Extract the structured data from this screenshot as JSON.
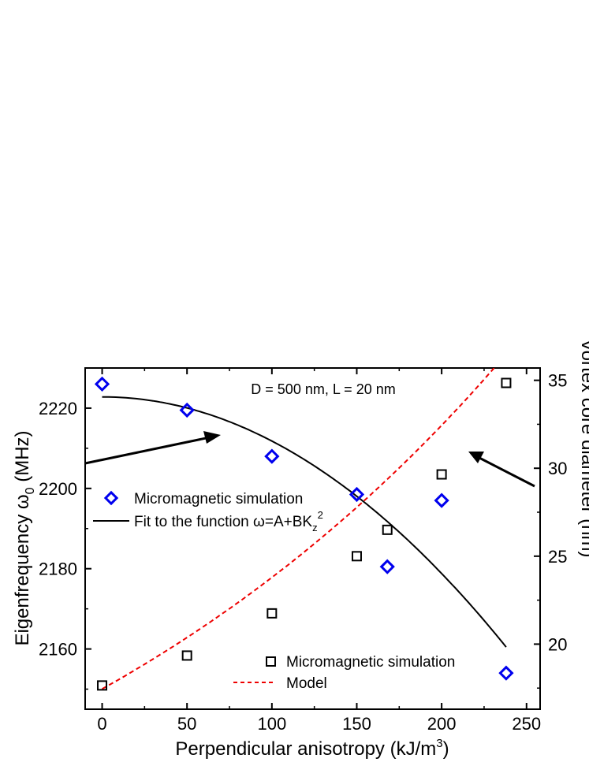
{
  "chart_data": {
    "type": "scatter",
    "annotation": "D = 500 nm, L = 20 nm",
    "x_axis": {
      "label": "Perpendicular anisotropy (kJ/m",
      "label_superscript": "3",
      "label_suffix": ")",
      "range": [
        -10,
        258
      ],
      "ticks": [
        0,
        50,
        100,
        150,
        200,
        250
      ],
      "tick_labels": [
        "0",
        "50",
        "100",
        "150",
        "200",
        "250"
      ]
    },
    "y_left": {
      "label_prefix": "Eigenfrequency ω",
      "label_subscript": "0",
      "label_suffix": " (MHz)",
      "range": [
        2145,
        2230
      ],
      "ticks": [
        2160,
        2180,
        2200,
        2220
      ],
      "tick_labels": [
        "2160",
        "2180",
        "2200",
        "2220"
      ]
    },
    "y_right": {
      "label": "Vortex core diameter (nm)",
      "range": [
        16.3,
        35.7
      ],
      "ticks": [
        20,
        25,
        30,
        35
      ],
      "tick_labels": [
        "20",
        "25",
        "30",
        "35"
      ]
    },
    "series": [
      {
        "name": "Micromagnetic simulation",
        "axis": "left",
        "marker": "diamond",
        "color": "#0000ee",
        "x": [
          0,
          50,
          100,
          150,
          168,
          200,
          238
        ],
        "y": [
          2226,
          2219.5,
          2208,
          2198.5,
          2180.5,
          2197,
          2154
        ]
      },
      {
        "name": "Fit to the function ω=A+BK",
        "name_sub": "z",
        "name_sup": "2",
        "axis": "left",
        "style": "solid",
        "color": "#000000",
        "function": {
          "A": 2222.8,
          "B": -0.0011,
          "x_range": [
            0,
            238
          ]
        }
      },
      {
        "name": "Micromagnetic simulation",
        "axis": "right",
        "marker": "square",
        "color": "#000000",
        "x": [
          0,
          50,
          100,
          150,
          168,
          200,
          238
        ],
        "y": [
          17.65,
          19.35,
          21.75,
          25.0,
          26.5,
          29.65,
          34.85
        ]
      },
      {
        "name": "Model",
        "axis": "right",
        "style": "dashed",
        "color": "#ee0000",
        "model": {
          "a": 17.45,
          "b": 0.0031,
          "x_range": [
            0,
            242
          ]
        }
      }
    ],
    "legend_left_position": "middle-left",
    "legend_right_position": "bottom-right",
    "arrows": [
      "pointing to left axis",
      "pointing to right axis"
    ]
  }
}
